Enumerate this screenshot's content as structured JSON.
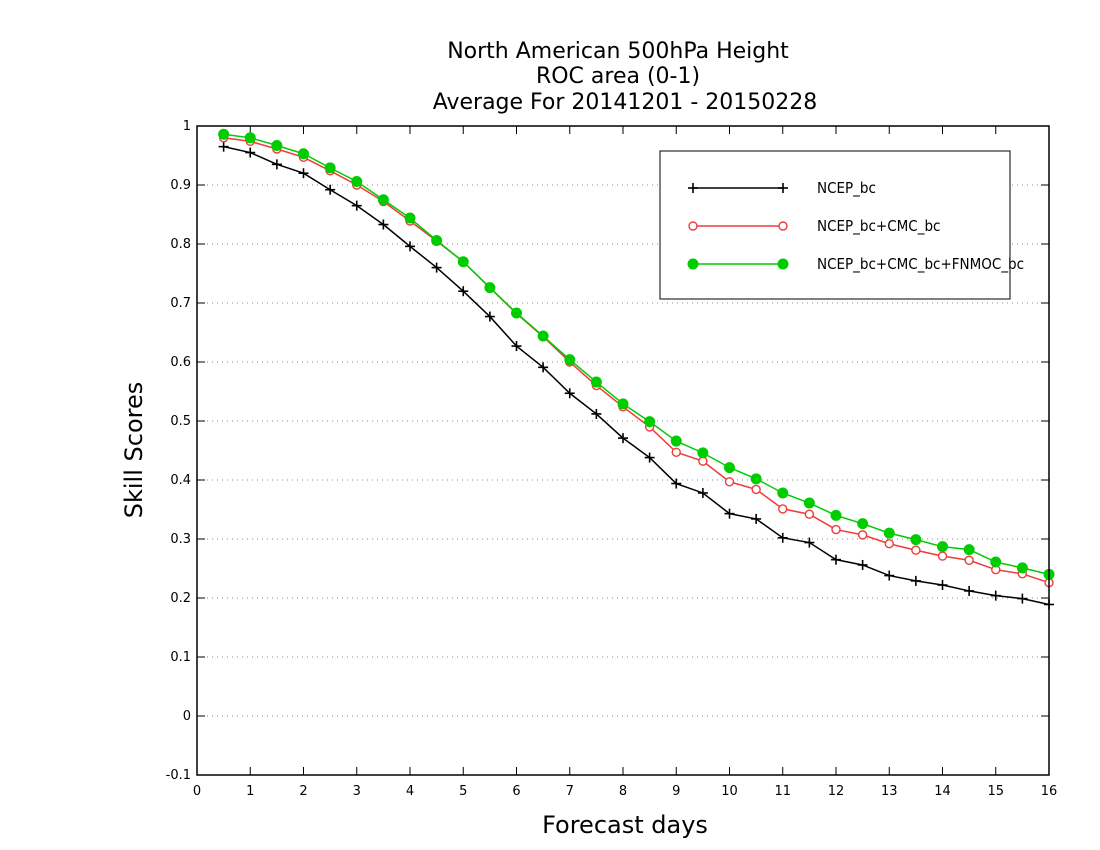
{
  "chart_data": {
    "type": "line",
    "title_lines": [
      "North American 500hPa Height",
      "ROC area (0-1)",
      "Average For 20141201 - 20150228"
    ],
    "xlabel": "Forecast days",
    "ylabel": "Skill Scores",
    "xlim": [
      0,
      16
    ],
    "ylim": [
      -0.1,
      1
    ],
    "xticks": [
      "0",
      "1",
      "2",
      "3",
      "4",
      "5",
      "6",
      "7",
      "8",
      "9",
      "10",
      "11",
      "12",
      "13",
      "14",
      "15",
      "16"
    ],
    "yticks": [
      "1",
      "0.9",
      "0.8",
      "0.7",
      "0.6",
      "0.5",
      "0.4",
      "0.3",
      "0.2",
      "0.1",
      "0",
      "-0.1"
    ],
    "ytick_values": [
      1,
      0.9,
      0.8,
      0.7,
      0.6,
      0.5,
      0.4,
      0.3,
      0.2,
      0.1,
      0,
      -0.1
    ],
    "grid": "horizontal dotted",
    "legend_position": "top-right",
    "x": [
      0.5,
      1,
      1.5,
      2,
      2.5,
      3,
      3.5,
      4,
      4.5,
      5,
      5.5,
      6,
      6.5,
      7,
      7.5,
      8,
      8.5,
      9,
      9.5,
      10,
      10.5,
      11,
      11.5,
      12,
      12.5,
      13,
      13.5,
      14,
      14.5,
      15,
      15.5,
      16
    ],
    "series": [
      {
        "name": "NCEP_bc",
        "color": "#000000",
        "marker": "plus",
        "values": [
          0.965,
          0.955,
          0.935,
          0.92,
          0.892,
          0.865,
          0.833,
          0.796,
          0.76,
          0.72,
          0.677,
          0.627,
          0.591,
          0.547,
          0.512,
          0.471,
          0.438,
          0.394,
          0.378,
          0.343,
          0.334,
          0.302,
          0.294,
          0.265,
          0.256,
          0.238,
          0.229,
          0.222,
          0.212,
          0.204,
          0.199,
          0.189
        ]
      },
      {
        "name": "NCEP_bc+CMC_bc",
        "color": "#ee3b3b",
        "marker": "open-circle",
        "values": [
          0.98,
          0.974,
          0.961,
          0.947,
          0.924,
          0.9,
          0.872,
          0.839,
          0.805,
          0.77,
          0.726,
          0.682,
          0.643,
          0.6,
          0.56,
          0.524,
          0.49,
          0.447,
          0.432,
          0.397,
          0.384,
          0.351,
          0.342,
          0.316,
          0.307,
          0.292,
          0.281,
          0.271,
          0.264,
          0.248,
          0.241,
          0.226
        ]
      },
      {
        "name": "NCEP_bc+CMC_bc+FNMOC_bc",
        "color": "#00cc00",
        "marker": "filled-circle",
        "values": [
          0.986,
          0.98,
          0.967,
          0.953,
          0.929,
          0.906,
          0.875,
          0.844,
          0.806,
          0.77,
          0.726,
          0.683,
          0.644,
          0.604,
          0.566,
          0.529,
          0.499,
          0.466,
          0.446,
          0.421,
          0.402,
          0.378,
          0.361,
          0.34,
          0.326,
          0.31,
          0.299,
          0.287,
          0.282,
          0.261,
          0.251,
          0.24
        ]
      }
    ]
  }
}
